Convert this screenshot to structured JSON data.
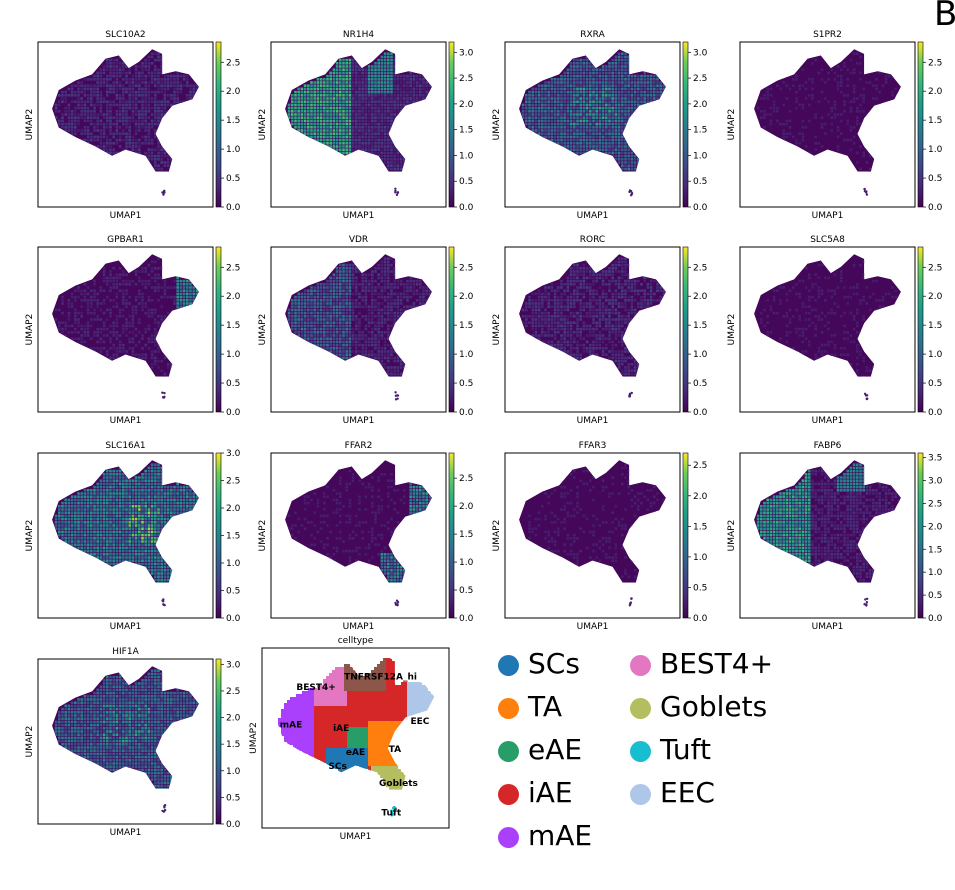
{
  "figure": {
    "corner_letter": "B"
  },
  "chart_data": [
    {
      "type": "scatter",
      "title": "SLC10A2",
      "xlabel": "UMAP1",
      "ylabel": "UMAP2",
      "colorbar": {
        "ticks": [
          "0.0",
          "0.5",
          "1.0",
          "1.5",
          "2.0",
          "2.5"
        ],
        "range": [
          0,
          2.85
        ]
      },
      "colormap": "viridis",
      "pattern": "low-uniform"
    },
    {
      "type": "scatter",
      "title": "NR1H4",
      "xlabel": "UMAP1",
      "ylabel": "UMAP2",
      "colorbar": {
        "ticks": [
          "0.0",
          "0.5",
          "1.0",
          "1.5",
          "2.0",
          "2.5",
          "3.0"
        ],
        "range": [
          0,
          3.2
        ]
      },
      "colormap": "viridis",
      "pattern": "left-high"
    },
    {
      "type": "scatter",
      "title": "RXRA",
      "xlabel": "UMAP1",
      "ylabel": "UMAP2",
      "colorbar": {
        "ticks": [
          "0.0",
          "0.5",
          "1.0",
          "1.5",
          "2.0",
          "2.5",
          "3.0"
        ],
        "range": [
          0,
          3.2
        ]
      },
      "colormap": "viridis",
      "pattern": "broad-mid"
    },
    {
      "type": "scatter",
      "title": "S1PR2",
      "xlabel": "UMAP1",
      "ylabel": "UMAP2",
      "colorbar": {
        "ticks": [
          "0.0",
          "0.5",
          "1.0",
          "1.5",
          "2.0",
          "2.5"
        ],
        "range": [
          0,
          2.85
        ]
      },
      "colormap": "viridis",
      "pattern": "very-low"
    },
    {
      "type": "scatter",
      "title": "GPBAR1",
      "xlabel": "UMAP1",
      "ylabel": "UMAP2",
      "colorbar": {
        "ticks": [
          "0.0",
          "0.5",
          "1.0",
          "1.5",
          "2.0",
          "2.5"
        ],
        "range": [
          0,
          2.85
        ]
      },
      "colormap": "viridis",
      "pattern": "eec-high"
    },
    {
      "type": "scatter",
      "title": "VDR",
      "xlabel": "UMAP1",
      "ylabel": "UMAP2",
      "colorbar": {
        "ticks": [
          "0.0",
          "0.5",
          "1.0",
          "1.5",
          "2.0",
          "2.5"
        ],
        "range": [
          0,
          2.85
        ]
      },
      "colormap": "viridis",
      "pattern": "left-mid"
    },
    {
      "type": "scatter",
      "title": "RORC",
      "xlabel": "UMAP1",
      "ylabel": "UMAP2",
      "colorbar": {
        "ticks": [
          "0.0",
          "0.5",
          "1.0",
          "1.5",
          "2.0",
          "2.5"
        ],
        "range": [
          0,
          2.85
        ]
      },
      "colormap": "viridis",
      "pattern": "low-uniform"
    },
    {
      "type": "scatter",
      "title": "SLC5A8",
      "xlabel": "UMAP1",
      "ylabel": "UMAP2",
      "colorbar": {
        "ticks": [
          "0.0",
          "0.5",
          "1.0",
          "1.5",
          "2.0",
          "2.5"
        ],
        "range": [
          0,
          2.85
        ]
      },
      "colormap": "viridis",
      "pattern": "very-low"
    },
    {
      "type": "scatter",
      "title": "SLC16A1",
      "xlabel": "UMAP1",
      "ylabel": "UMAP2",
      "colorbar": {
        "ticks": [
          "0.0",
          "0.5",
          "1.0",
          "1.5",
          "2.0",
          "2.5",
          "3.0"
        ],
        "range": [
          0,
          3.0
        ]
      },
      "colormap": "viridis",
      "pattern": "broad-high"
    },
    {
      "type": "scatter",
      "title": "FFAR2",
      "xlabel": "UMAP1",
      "ylabel": "UMAP2",
      "colorbar": {
        "ticks": [
          "0.0",
          "0.5",
          "1.0",
          "1.5",
          "2.0",
          "2.5"
        ],
        "range": [
          0,
          2.95
        ]
      },
      "colormap": "viridis",
      "pattern": "eec-goblet"
    },
    {
      "type": "scatter",
      "title": "FFAR3",
      "xlabel": "UMAP1",
      "ylabel": "UMAP2",
      "colorbar": {
        "ticks": [
          "0.0",
          "0.5",
          "1.0",
          "1.5",
          "2.0",
          "2.5"
        ],
        "range": [
          0,
          2.7
        ]
      },
      "colormap": "viridis",
      "pattern": "very-low"
    },
    {
      "type": "scatter",
      "title": "FABP6",
      "xlabel": "UMAP1",
      "ylabel": "UMAP2",
      "colorbar": {
        "ticks": [
          "0.0",
          "0.5",
          "1.0",
          "1.5",
          "2.0",
          "2.5",
          "3.0",
          "3.5"
        ],
        "range": [
          0,
          3.6
        ]
      },
      "colormap": "viridis",
      "pattern": "left-high-2"
    },
    {
      "type": "scatter",
      "title": "HIF1A",
      "xlabel": "UMAP1",
      "ylabel": "UMAP2",
      "colorbar": {
        "ticks": [
          "0.0",
          "0.5",
          "1.0",
          "1.5",
          "2.0",
          "2.5",
          "3.0"
        ],
        "range": [
          0,
          3.1
        ]
      },
      "colormap": "viridis",
      "pattern": "broad-mid"
    },
    {
      "type": "scatter",
      "title": "celltype",
      "xlabel": "UMAP1",
      "ylabel": "UMAP2",
      "cluster_labels": [
        "TNFRSF12A_hi",
        "BEST4+",
        "mAE",
        "iAE",
        "EEC",
        "eAE",
        "TA",
        "SCs",
        "Goblets",
        "Tuft"
      ],
      "legend": {
        "placement": "right",
        "entries": [
          {
            "name": "SCs",
            "color": "#1f77b4"
          },
          {
            "name": "TA",
            "color": "#ff7f0e"
          },
          {
            "name": "eAE",
            "color": "#279e68"
          },
          {
            "name": "iAE",
            "color": "#d62728"
          },
          {
            "name": "mAE",
            "color": "#aa40fc"
          },
          {
            "name": "BEST4+",
            "color": "#e377c2"
          },
          {
            "name": "Goblets",
            "color": "#b5bd61"
          },
          {
            "name": "Tuft",
            "color": "#17becf"
          },
          {
            "name": "EEC",
            "color": "#aec7e8"
          }
        ]
      },
      "extra_cluster_color": "#8c564b"
    }
  ]
}
